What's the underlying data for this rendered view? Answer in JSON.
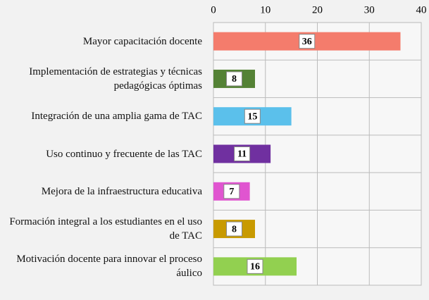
{
  "chart_data": {
    "type": "bar",
    "orientation": "horizontal",
    "categories": [
      "Mayor capacitación docente",
      "Implementación de estrategias y técnicas pedagógicas óptimas",
      "Integración de una amplia gama de TAC",
      "Uso continuo y frecuente de las TAC",
      "Mejora de la infraestructura educativa",
      "Formación integral a los estudiantes en el uso de TAC",
      "Motivación docente para innovar el proceso áulico"
    ],
    "values": [
      36,
      8,
      15,
      11,
      7,
      8,
      16
    ],
    "colors": [
      "#f47c6c",
      "#548235",
      "#5bc0eb",
      "#7030a0",
      "#e055d0",
      "#c89a00",
      "#92d050"
    ],
    "xlim": [
      0,
      40
    ],
    "xticks": [
      0,
      10,
      20,
      30,
      40
    ],
    "grid": true
  }
}
